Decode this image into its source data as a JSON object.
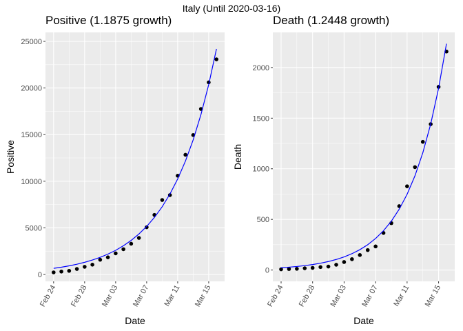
{
  "title": "Italy (Until 2020-03-16)",
  "chart_data": [
    {
      "type": "scatter",
      "title": "Positive (1.1875 growth)",
      "x_label": "Date",
      "y_label": "Positive",
      "categories": [
        "Feb 24",
        null,
        null,
        null,
        "Feb 28",
        null,
        null,
        null,
        "Mar 03",
        null,
        null,
        null,
        "Mar 07",
        null,
        null,
        null,
        "Mar 11",
        null,
        null,
        null,
        "Mar 15",
        null
      ],
      "series": [
        {
          "mark": "point",
          "color": "#000000",
          "values": [
            221,
            311,
            385,
            588,
            821,
            1049,
            1577,
            1835,
            2263,
            2706,
            3296,
            3916,
            5061,
            6387,
            7985,
            8514,
            10590,
            12839,
            14955,
            17750,
            20603,
            23073
          ]
        },
        {
          "mark": "line",
          "color": "#0000ff",
          "values": [
            655,
            778,
            924,
            1097,
            1303,
            1547,
            1837,
            2181,
            2590,
            3076,
            3653,
            4337,
            5151,
            6117,
            7263,
            8625,
            10243,
            12163,
            14444,
            17152,
            20368,
            24186
          ]
        }
      ],
      "ylim": [
        -740,
        25962
      ],
      "yticks": [
        0,
        5000,
        10000,
        15000,
        20000,
        25000
      ],
      "grid": true
    },
    {
      "type": "scatter",
      "title": "Death (1.2448 growth)",
      "x_label": "Date",
      "y_label": "Death",
      "categories": [
        "Feb 24",
        null,
        null,
        null,
        "Feb 28",
        null,
        null,
        null,
        "Mar 03",
        null,
        null,
        null,
        "Mar 07",
        null,
        null,
        null,
        "Mar 11",
        null,
        null,
        null,
        "Mar 15",
        null
      ],
      "series": [
        {
          "mark": "point",
          "color": "#000000",
          "values": [
            7,
            10,
            12,
            17,
            21,
            29,
            34,
            52,
            79,
            107,
            148,
            197,
            233,
            366,
            463,
            631,
            827,
            1016,
            1266,
            1441,
            1809,
            2158
          ]
        },
        {
          "mark": "line",
          "color": "#0000ff",
          "values": [
            22.5,
            28.0,
            34.9,
            43.4,
            54.0,
            67.2,
            83.7,
            104.2,
            129.7,
            161.5,
            201.0,
            250.2,
            311.4,
            387.7,
            482.6,
            600.7,
            747.8,
            930.8,
            1158.7,
            1442.4,
            1795.4,
            2235.0
          ]
        }
      ],
      "ylim": [
        -112,
        2347
      ],
      "yticks": [
        0,
        500,
        1000,
        1500,
        2000
      ],
      "grid": true
    }
  ]
}
